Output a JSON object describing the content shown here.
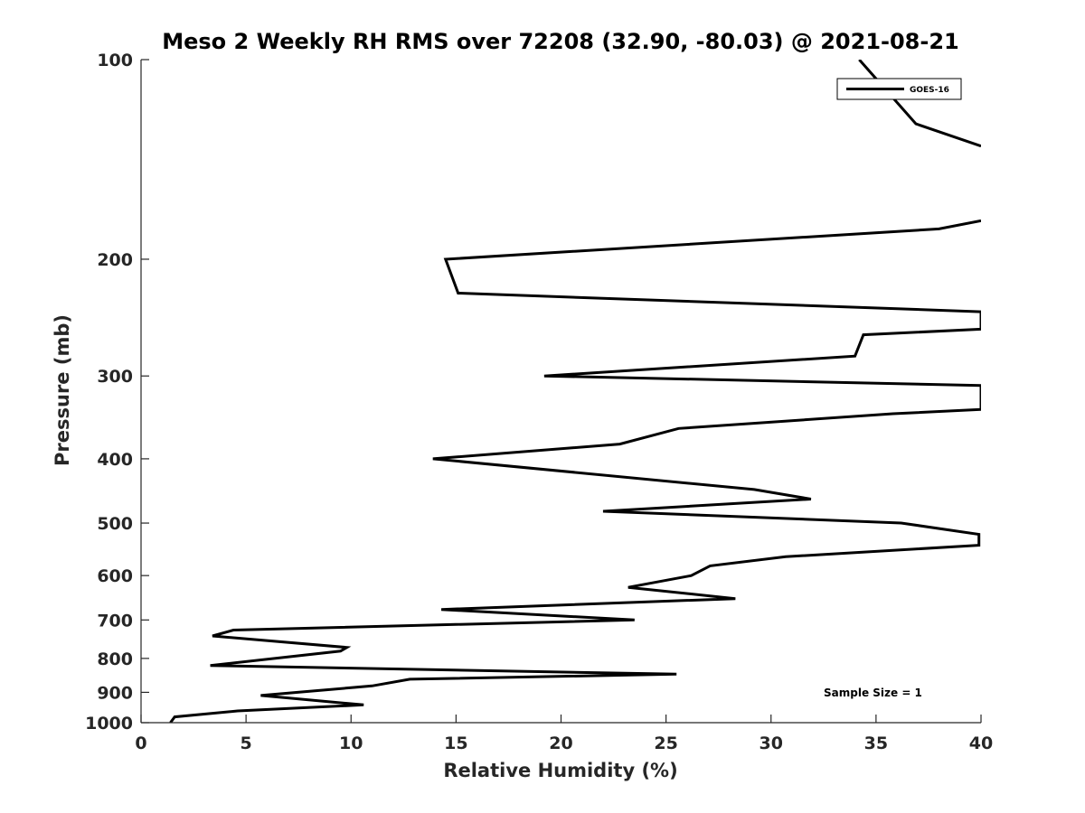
{
  "chart_data": {
    "type": "line",
    "title": "Meso 2 Weekly RH RMS over 72208 (32.90, -80.03) @ 2021-08-21",
    "xlabel": "Relative Humidity (%)",
    "ylabel": "Pressure (mb)",
    "xlim": [
      0,
      40
    ],
    "ylim": [
      100,
      1000
    ],
    "y_scale": "log",
    "y_reversed": true,
    "x_ticks": [
      0,
      5,
      10,
      15,
      20,
      25,
      30,
      35,
      40
    ],
    "y_ticks": [
      100,
      200,
      300,
      400,
      500,
      600,
      700,
      800,
      900,
      1000
    ],
    "grid": false,
    "legend_position": "top-right",
    "series": [
      {
        "name": "GOES-16",
        "color": "#000000",
        "points": [
          [
            34.2,
            100
          ],
          [
            36.9,
            125
          ],
          [
            40.0,
            135
          ],
          [
            null,
            150
          ],
          [
            null,
            165
          ],
          [
            40.0,
            175
          ],
          [
            38.0,
            180
          ],
          [
            14.5,
            200
          ],
          [
            15.1,
            225
          ],
          [
            40.0,
            240
          ],
          [
            40.0,
            255
          ],
          [
            34.4,
            260
          ],
          [
            34.0,
            280
          ],
          [
            19.2,
            300
          ],
          [
            40.0,
            310
          ],
          [
            40.0,
            337
          ],
          [
            35.8,
            342
          ],
          [
            25.6,
            360
          ],
          [
            22.8,
            380
          ],
          [
            13.9,
            400
          ],
          [
            29.2,
            445
          ],
          [
            31.9,
            460
          ],
          [
            22.0,
            480
          ],
          [
            36.2,
            500
          ],
          [
            39.9,
            520
          ],
          [
            39.9,
            540
          ],
          [
            30.7,
            562
          ],
          [
            27.1,
            580
          ],
          [
            26.2,
            600
          ],
          [
            23.2,
            625
          ],
          [
            28.3,
            650
          ],
          [
            14.3,
            675
          ],
          [
            23.5,
            700
          ],
          [
            4.4,
            725
          ],
          [
            3.4,
            740
          ],
          [
            9.8,
            770
          ],
          [
            9.5,
            780
          ],
          [
            3.3,
            820
          ],
          [
            25.5,
            845
          ],
          [
            12.8,
            860
          ],
          [
            11.0,
            880
          ],
          [
            5.7,
            910
          ],
          [
            10.6,
            940
          ],
          [
            4.6,
            960
          ],
          [
            1.6,
            980
          ],
          [
            1.4,
            1000
          ]
        ]
      }
    ],
    "annotations": [
      {
        "text": "Sample Size = 1"
      }
    ]
  }
}
